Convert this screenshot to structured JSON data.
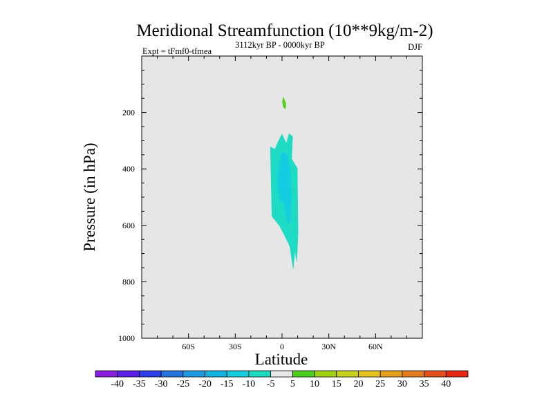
{
  "chart_data": {
    "type": "contour",
    "title": "Meridional Streamfunction (10**9kg/m-2)",
    "left_label": "Expt = tFmf0-tfmea",
    "center_label": "3112kyr BP - 0000kyr BP",
    "right_label": "DJF",
    "xlabel": "Latitude",
    "ylabel": "Pressure (in hPa)",
    "xlim": [
      -90,
      90
    ],
    "ylim": [
      1000,
      0
    ],
    "x_ticks": [
      {
        "value": -60,
        "label": "60S"
      },
      {
        "value": -30,
        "label": "30S"
      },
      {
        "value": 0,
        "label": "0"
      },
      {
        "value": 30,
        "label": "30N"
      },
      {
        "value": 60,
        "label": "60N"
      }
    ],
    "y_ticks": [
      {
        "value": 200,
        "label": "200"
      },
      {
        "value": 400,
        "label": "400"
      },
      {
        "value": 600,
        "label": "600"
      },
      {
        "value": 800,
        "label": "800"
      },
      {
        "value": 1000,
        "label": "1000"
      }
    ],
    "y_minor_step": 50,
    "x_minor_step": 10,
    "background_color": "#e6e6e6",
    "contour_levels": [
      -40,
      -35,
      -30,
      -25,
      -20,
      -15,
      -10,
      -5,
      5,
      10,
      15,
      20,
      25,
      30,
      35,
      40
    ],
    "colorbar_colors": [
      "#8a1ee0",
      "#5a1ee6",
      "#2f3de6",
      "#2673e0",
      "#1e9be0",
      "#14b5e0",
      "#14cde0",
      "#1edcc3",
      "#e8e8e8",
      "#4cd21e",
      "#a0d214",
      "#c8d21e",
      "#e6c31e",
      "#e6a01e",
      "#e67d1e",
      "#e6501e",
      "#e62814"
    ],
    "filled_regions": [
      {
        "name": "positive-5-10-blob",
        "range": "5 to 10",
        "color": "#4cd21e",
        "points": [
          [
            0.8,
            145
          ],
          [
            2.5,
            168
          ],
          [
            2.2,
            188
          ],
          [
            0.9,
            182
          ],
          [
            0.2,
            162
          ]
        ]
      },
      {
        "name": "negative-5-10-region",
        "range": "-10 to -5",
        "color": "#1edcc3",
        "points": [
          [
            0.0,
            277
          ],
          [
            2.8,
            310
          ],
          [
            4.5,
            275
          ],
          [
            6.8,
            285
          ],
          [
            6.2,
            365
          ],
          [
            9.8,
            397
          ],
          [
            10.3,
            625
          ],
          [
            9.5,
            728
          ],
          [
            8.3,
            690
          ],
          [
            7.2,
            755
          ],
          [
            5.0,
            675
          ],
          [
            2.0,
            640
          ],
          [
            -1.5,
            603
          ],
          [
            -6.5,
            568
          ],
          [
            -7.5,
            322
          ],
          [
            -4.5,
            330
          ],
          [
            -2.5,
            303
          ]
        ]
      },
      {
        "name": "negative-10-15-region",
        "range": "-15 to -10",
        "color": "#14cde0",
        "points": [
          [
            0.0,
            340
          ],
          [
            3.5,
            350
          ],
          [
            5.5,
            410
          ],
          [
            6.0,
            500
          ],
          [
            5.5,
            575
          ],
          [
            3.8,
            598
          ],
          [
            1.2,
            520
          ],
          [
            -1.5,
            510
          ],
          [
            -3.2,
            450
          ],
          [
            -1.8,
            380
          ]
        ]
      }
    ]
  }
}
